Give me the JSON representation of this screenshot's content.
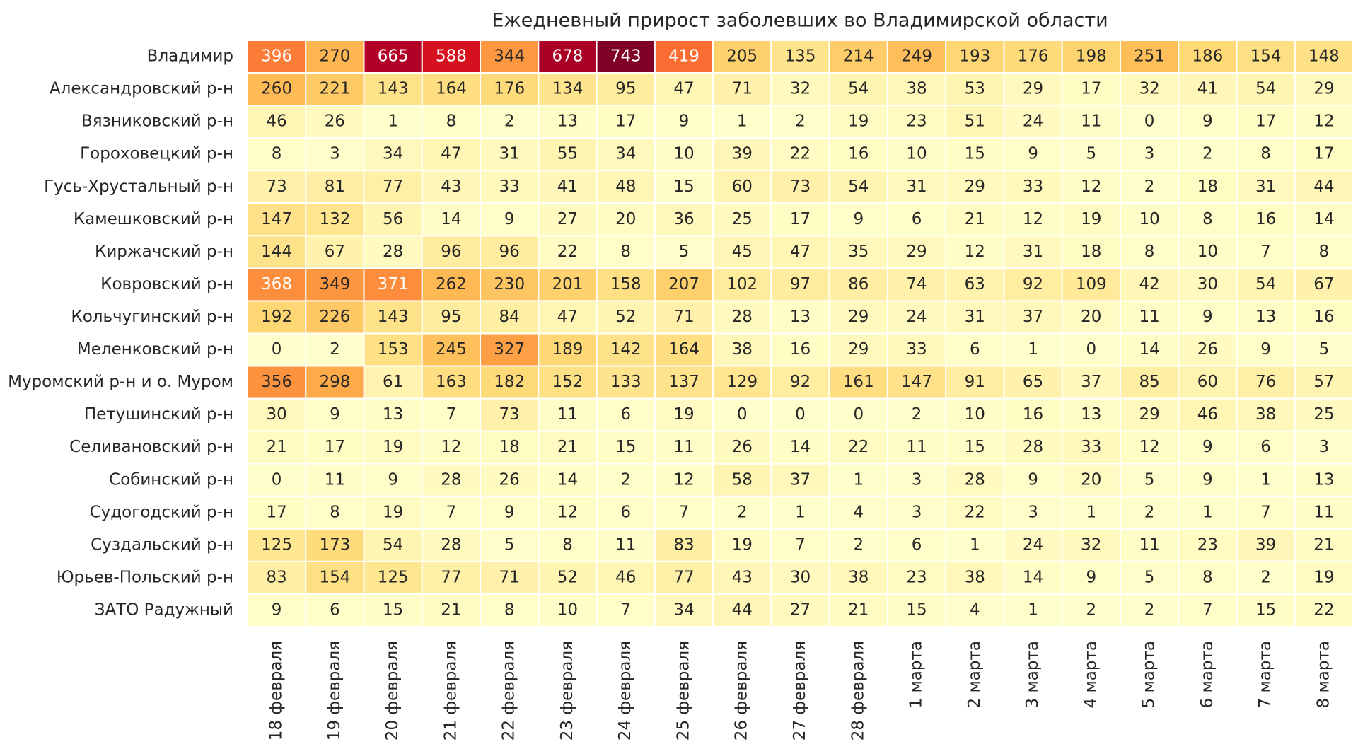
{
  "chart_data": {
    "type": "heatmap",
    "title": "Ежедневный прирост заболевших во Владимирской области",
    "colormap": [
      "#ffffcc",
      "#ffeda0",
      "#fed976",
      "#feb24c",
      "#fd8d3c",
      "#fc4e2a",
      "#e31a1c",
      "#bd0026",
      "#800026"
    ],
    "x": [
      "18 февраля",
      "19 февраля",
      "20 февраля",
      "21 февраля",
      "22 февраля",
      "23 февраля",
      "24 февраля",
      "25 февраля",
      "26 февраля",
      "27 февраля",
      "28 февраля",
      "1 марта",
      "2 марта",
      "3 марта",
      "4 марта",
      "5 марта",
      "6 марта",
      "7 марта",
      "8 марта"
    ],
    "y": [
      "Владимир",
      "Александровский р-н",
      "Вязниковский р-н",
      "Гороховецкий р-н",
      "Гусь-Хрустальный р-н",
      "Камешковский р-н",
      "Киржачский р-н",
      "Ковровский р-н",
      "Кольчугинский р-н",
      "Меленковский р-н",
      "Муромский р-н и о. Муром",
      "Петушинский р-н",
      "Селивановский р-н",
      "Собинский р-н",
      "Судогодский р-н",
      "Суздальский р-н",
      "Юрьев-Польский р-н",
      "ЗАТО Радужный"
    ],
    "values": [
      [
        396,
        270,
        665,
        588,
        344,
        678,
        743,
        419,
        205,
        135,
        214,
        249,
        193,
        176,
        198,
        251,
        186,
        154,
        148
      ],
      [
        260,
        221,
        143,
        164,
        176,
        134,
        95,
        47,
        71,
        32,
        54,
        38,
        53,
        29,
        17,
        32,
        41,
        54,
        29
      ],
      [
        46,
        26,
        1,
        8,
        2,
        13,
        17,
        9,
        1,
        2,
        19,
        23,
        51,
        24,
        11,
        0,
        9,
        17,
        12
      ],
      [
        8,
        3,
        34,
        47,
        31,
        55,
        34,
        10,
        39,
        22,
        16,
        10,
        15,
        9,
        5,
        3,
        2,
        8,
        17
      ],
      [
        73,
        81,
        77,
        43,
        33,
        41,
        48,
        15,
        60,
        73,
        54,
        31,
        29,
        33,
        12,
        2,
        18,
        31,
        44
      ],
      [
        147,
        132,
        56,
        14,
        9,
        27,
        20,
        36,
        25,
        17,
        9,
        6,
        21,
        12,
        19,
        10,
        8,
        16,
        14
      ],
      [
        144,
        67,
        28,
        96,
        96,
        22,
        8,
        5,
        45,
        47,
        35,
        29,
        12,
        31,
        18,
        8,
        10,
        7,
        8
      ],
      [
        368,
        349,
        371,
        262,
        230,
        201,
        158,
        207,
        102,
        97,
        86,
        74,
        63,
        92,
        109,
        42,
        30,
        54,
        67
      ],
      [
        192,
        226,
        143,
        95,
        84,
        47,
        52,
        71,
        28,
        13,
        29,
        24,
        31,
        37,
        20,
        11,
        9,
        13,
        16
      ],
      [
        0,
        2,
        153,
        245,
        327,
        189,
        142,
        164,
        38,
        16,
        29,
        33,
        6,
        1,
        0,
        14,
        26,
        9,
        5
      ],
      [
        356,
        298,
        61,
        163,
        182,
        152,
        133,
        137,
        129,
        92,
        161,
        147,
        91,
        65,
        37,
        85,
        60,
        76,
        57
      ],
      [
        30,
        9,
        13,
        7,
        73,
        11,
        6,
        19,
        0,
        0,
        0,
        2,
        10,
        16,
        13,
        29,
        46,
        38,
        25
      ],
      [
        21,
        17,
        19,
        12,
        18,
        21,
        15,
        11,
        26,
        14,
        22,
        11,
        15,
        28,
        33,
        12,
        9,
        6,
        3
      ],
      [
        0,
        11,
        9,
        28,
        26,
        14,
        2,
        12,
        58,
        37,
        1,
        3,
        28,
        9,
        20,
        5,
        9,
        1,
        13
      ],
      [
        17,
        8,
        19,
        7,
        9,
        12,
        6,
        7,
        2,
        1,
        4,
        3,
        22,
        3,
        1,
        2,
        1,
        7,
        11
      ],
      [
        125,
        173,
        54,
        28,
        5,
        8,
        11,
        83,
        19,
        7,
        2,
        6,
        1,
        24,
        32,
        11,
        23,
        39,
        21
      ],
      [
        83,
        154,
        125,
        77,
        71,
        52,
        46,
        77,
        43,
        30,
        38,
        23,
        38,
        14,
        9,
        5,
        8,
        2,
        19
      ],
      [
        9,
        6,
        15,
        21,
        8,
        10,
        7,
        34,
        44,
        27,
        21,
        15,
        4,
        1,
        2,
        2,
        7,
        15,
        22
      ]
    ]
  }
}
